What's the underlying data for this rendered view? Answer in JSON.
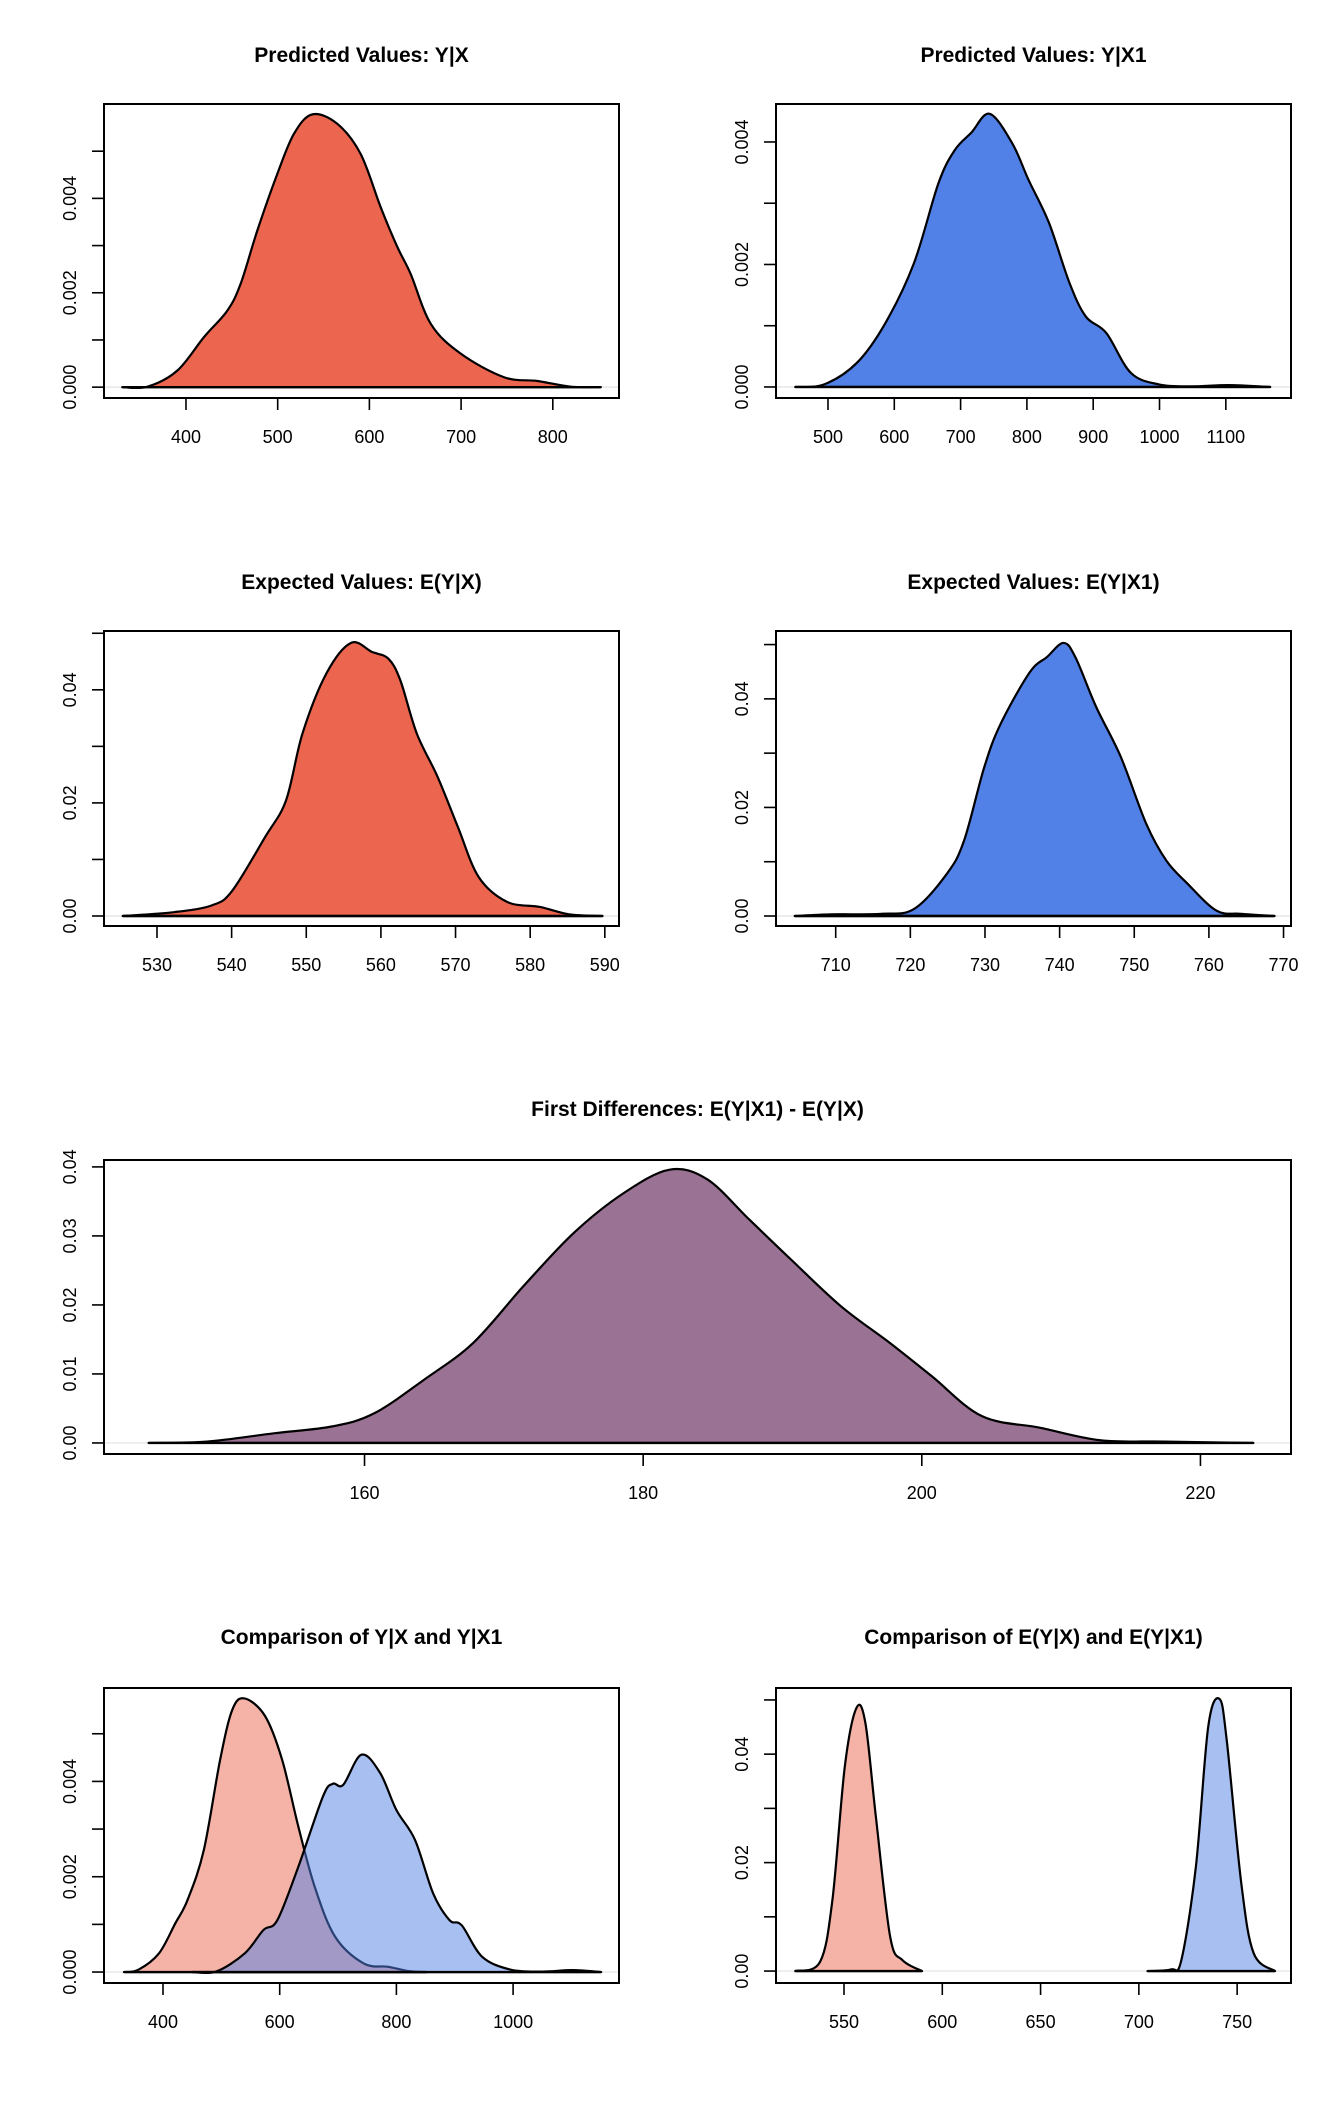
{
  "chart_data": [
    {
      "id": "predicted-yx",
      "type": "area",
      "title": "Predicted Values: Y|X",
      "xlabel": "",
      "ylabel": "",
      "xlim": [
        310.6,
        872.2
      ],
      "ylim": [
        -0.00023,
        0.006
      ],
      "x_ticks": [
        400,
        500,
        600,
        700,
        800
      ],
      "x_tick_labels": [
        "400",
        "500",
        "600",
        "700",
        "800"
      ],
      "y_ticks": [
        0,
        0.001,
        0.002,
        0.003,
        0.004,
        0.005
      ],
      "y_tick_labels": [
        "0.000",
        "",
        "0.002",
        "",
        "0.004",
        ""
      ],
      "grid": false,
      "series": [
        {
          "name": "Y|X",
          "color": "#eb654f",
          "opacity": 1,
          "x": [
            330.5,
            358,
            390.5,
            419.6,
            445,
            459.6,
            477.8,
            499.6,
            517.8,
            537.8,
            565,
            590.5,
            612.4,
            630.5,
            645,
            667,
            699.6,
            746.9,
            783.3,
            819.6,
            852.4
          ],
          "y": [
            0,
            1e-05,
            0.00035,
            0.00106,
            0.00162,
            0.00219,
            0.00332,
            0.00452,
            0.00537,
            0.00578,
            0.00558,
            0.00494,
            0.00381,
            0.00297,
            0.0024,
            0.00134,
            0.00071,
            0.00021,
            0.00013,
            1e-05,
            0
          ]
        }
      ]
    },
    {
      "id": "predicted-yx1",
      "type": "area",
      "title": "Predicted Values: Y|X1",
      "xlabel": "",
      "ylabel": "",
      "xlim": [
        421.6,
        1198.3
      ],
      "ylim": [
        -0.00018,
        0.00462
      ],
      "x_ticks": [
        500,
        600,
        700,
        800,
        900,
        1000,
        1100
      ],
      "x_tick_labels": [
        "500",
        "600",
        "700",
        "800",
        "900",
        "1000",
        "1100"
      ],
      "y_ticks": [
        0,
        0.001,
        0.002,
        0.003,
        0.004
      ],
      "y_tick_labels": [
        "0.000",
        "",
        "0.002",
        "",
        "0.004"
      ],
      "grid": false,
      "series": [
        {
          "name": "Y|X1",
          "color": "#5180e6",
          "opacity": 1,
          "x": [
            450.6,
            493.8,
            543.2,
            586.4,
            629.6,
            666.7,
            691.4,
            716,
            743.8,
            777.8,
            802.5,
            833.3,
            864.2,
            888.9,
            919.8,
            956.8,
            1000,
            1049,
            1105,
            1167
          ],
          "y": [
            0,
            4e-05,
            0.00039,
            0.00104,
            0.00202,
            0.00333,
            0.00387,
            0.00415,
            0.00446,
            0.00398,
            0.00338,
            0.00268,
            0.0017,
            0.00115,
            0.00088,
            0.00023,
            4e-05,
            1e-05,
            3e-05,
            0
          ]
        }
      ]
    },
    {
      "id": "expected-yx",
      "type": "area",
      "title": "Expected Values: E(Y|X)",
      "xlabel": "",
      "ylabel": "",
      "xlim": [
        522.9,
        591.9
      ],
      "ylim": [
        -0.00177,
        0.0504
      ],
      "x_ticks": [
        530,
        540,
        550,
        560,
        570,
        580,
        590
      ],
      "x_tick_labels": [
        "530",
        "540",
        "550",
        "560",
        "570",
        "580",
        "590"
      ],
      "y_ticks": [
        0,
        0.01,
        0.02,
        0.03,
        0.04,
        0.05
      ],
      "y_tick_labels": [
        "0.00",
        "",
        "0.02",
        "",
        "0.04",
        ""
      ],
      "grid": false,
      "series": [
        {
          "name": "E(Y|X)",
          "color": "#eb654f",
          "opacity": 1,
          "x": [
            525.4,
            532.4,
            537.4,
            540.1,
            544.5,
            547.3,
            549.5,
            552.7,
            556,
            558.8,
            561,
            562.6,
            564.8,
            567.6,
            570.3,
            573.1,
            576.9,
            581.3,
            585.2,
            589.7
          ],
          "y": [
            0,
            0.0007,
            0.0019,
            0.0045,
            0.014,
            0.0205,
            0.0323,
            0.0429,
            0.0483,
            0.0467,
            0.0455,
            0.0417,
            0.0323,
            0.0246,
            0.0158,
            0.0069,
            0.0025,
            0.0016,
            0.0003,
            0
          ]
        }
      ]
    },
    {
      "id": "expected-yx1",
      "type": "area",
      "title": "Expected Values: E(Y|X1)",
      "xlabel": "",
      "ylabel": "",
      "xlim": [
        702,
        771
      ],
      "ylim": [
        -0.00184,
        0.0525
      ],
      "x_ticks": [
        710,
        720,
        730,
        740,
        750,
        760,
        770
      ],
      "x_tick_labels": [
        "710",
        "720",
        "730",
        "740",
        "750",
        "760",
        "770"
      ],
      "y_ticks": [
        0,
        0.01,
        0.02,
        0.03,
        0.04,
        0.05
      ],
      "y_tick_labels": [
        "0.00",
        "",
        "0.02",
        "",
        "0.04",
        ""
      ],
      "grid": false,
      "series": [
        {
          "name": "E(Y|X1)",
          "color": "#5180e6",
          "opacity": 1,
          "x": [
            704.5,
            709.4,
            716.1,
            720.5,
            724.9,
            727.2,
            729.9,
            732.1,
            736,
            738.3,
            740.5,
            742.1,
            744.9,
            748.2,
            751.6,
            754.3,
            757.1,
            761,
            764.3,
            768.8
          ],
          "y": [
            0,
            0.0003,
            0.0004,
            0.0013,
            0.0078,
            0.0139,
            0.0274,
            0.0354,
            0.0449,
            0.0477,
            0.0503,
            0.0477,
            0.0385,
            0.0293,
            0.017,
            0.0102,
            0.006,
            0.001,
            0.0004,
            0
          ]
        }
      ]
    },
    {
      "id": "first-differences",
      "type": "area",
      "title": "First Differences: E(Y|X1) - E(Y|X)",
      "xlabel": "",
      "ylabel": "",
      "xlim": [
        141.3,
        226.5
      ],
      "ylim": [
        -0.0016,
        0.041
      ],
      "x_ticks": [
        160,
        180,
        200,
        220
      ],
      "x_tick_labels": [
        "160",
        "180",
        "200",
        "220"
      ],
      "y_ticks": [
        0,
        0.01,
        0.02,
        0.03,
        0.04
      ],
      "y_tick_labels": [
        "0.00",
        "0.01",
        "0.02",
        "0.03",
        "0.04"
      ],
      "grid": false,
      "series": [
        {
          "name": "E(Y|X1) - E(Y|X)",
          "color": "#9a7394",
          "opacity": 1,
          "x": [
            144.5,
            148.7,
            153.5,
            157.7,
            160.7,
            164.3,
            167.8,
            171.4,
            175,
            178.6,
            181.9,
            184.6,
            187.6,
            190.6,
            194.2,
            197.7,
            200.7,
            204.3,
            208.5,
            212.8,
            217.5,
            223.8
          ],
          "y": [
            0,
            0.0002,
            0.0014,
            0.0024,
            0.0043,
            0.0092,
            0.0145,
            0.0227,
            0.0304,
            0.0362,
            0.0396,
            0.0382,
            0.0324,
            0.0266,
            0.0198,
            0.0145,
            0.0097,
            0.0039,
            0.0022,
            0.0004,
            0.0002,
            0
          ]
        }
      ]
    },
    {
      "id": "comparison-predicted",
      "type": "area",
      "title": "Comparison of Y|X and Y|X1",
      "xlabel": "",
      "ylabel": "",
      "xlim": [
        298.9,
        1181.5
      ],
      "ylim": [
        -0.00023,
        0.00596
      ],
      "x_ticks": [
        400,
        600,
        800,
        1000
      ],
      "x_tick_labels": [
        "400",
        "600",
        "800",
        "1000"
      ],
      "y_ticks": [
        0,
        0.001,
        0.002,
        0.003,
        0.004,
        0.005
      ],
      "y_tick_labels": [
        "0.000",
        "",
        "0.002",
        "",
        "0.004",
        ""
      ],
      "grid": false,
      "series": [
        {
          "name": "Y|X",
          "color": "#eb654f",
          "opacity": 0.5,
          "x": [
            333,
            358,
            393,
            421,
            442,
            470,
            498,
            519,
            540,
            575,
            604,
            632,
            660,
            695,
            744,
            786,
            821,
            852
          ],
          "y": [
            0,
            5e-05,
            0.00039,
            0.00102,
            0.00151,
            0.00256,
            0.00446,
            0.00551,
            0.00574,
            0.00537,
            0.00446,
            0.00305,
            0.00179,
            0.00074,
            0.00018,
            0.00011,
            2e-05,
            0
          ]
        },
        {
          "name": "Y|X1",
          "color": "#5180e6",
          "opacity": 0.5,
          "x": [
            450,
            491,
            540,
            572,
            596,
            632,
            674,
            691,
            709,
            740,
            772,
            800,
            832,
            863,
            891,
            912,
            947,
            996,
            1050,
            1102,
            1151
          ],
          "y": [
            0,
            1e-05,
            0.00039,
            0.00088,
            0.00109,
            0.00221,
            0.00368,
            0.00395,
            0.00393,
            0.00456,
            0.00418,
            0.0034,
            0.00277,
            0.00165,
            0.00109,
            0.00098,
            0.00032,
            5e-05,
            1e-05,
            4e-05,
            0
          ]
        }
      ]
    },
    {
      "id": "comparison-expected",
      "type": "area",
      "title": "Comparison of E(Y|X) and E(Y|X1)",
      "xlabel": "",
      "ylabel": "",
      "xlim": [
        515.4,
        777.4
      ],
      "ylim": [
        -0.0022,
        0.0522
      ],
      "x_ticks": [
        550,
        600,
        650,
        700,
        750
      ],
      "x_tick_labels": [
        "550",
        "600",
        "650",
        "700",
        "750"
      ],
      "y_ticks": [
        0,
        0.01,
        0.02,
        0.03,
        0.04,
        0.05
      ],
      "y_tick_labels": [
        "0.00",
        "",
        "0.02",
        "",
        "0.04",
        ""
      ],
      "grid": false,
      "series": [
        {
          "name": "E(Y|X)",
          "color": "#eb654f",
          "opacity": 0.5,
          "x": [
            525.2,
            537.8,
            544.1,
            550.4,
            556.3,
            560.9,
            566.2,
            573.5,
            579.8,
            589.7
          ],
          "y": [
            0,
            0.0017,
            0.0131,
            0.0377,
            0.0485,
            0.0457,
            0.0285,
            0.0063,
            0.002,
            0
          ]
        },
        {
          "name": "E(Y|X1)",
          "color": "#5180e6",
          "opacity": 0.5,
          "x": [
            704.4,
            716.4,
            721.6,
            729,
            735.3,
            741,
            744.7,
            752.1,
            758.4,
            769.3
          ],
          "y": [
            0,
            0.0003,
            0.002,
            0.0192,
            0.0451,
            0.0502,
            0.0426,
            0.0162,
            0.0033,
            0
          ]
        }
      ]
    }
  ]
}
